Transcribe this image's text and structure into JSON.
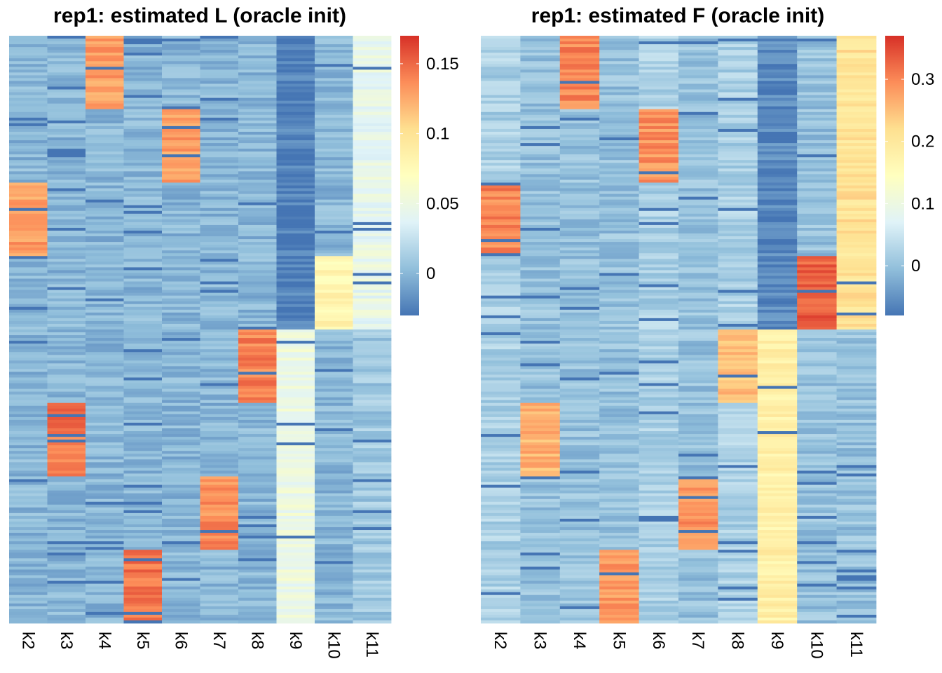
{
  "chart_data": [
    {
      "type": "heatmap",
      "title": "rep1: estimated L (oracle init)",
      "columns": [
        "k2",
        "k3",
        "k4",
        "k5",
        "k6",
        "k7",
        "k8",
        "k9",
        "k10",
        "k11"
      ],
      "row_blocks": 8,
      "block_means": [
        [
          0.0,
          0.0,
          0.13,
          0.0,
          0.0,
          0.0,
          0.0,
          -0.025,
          0.0,
          0.045
        ],
        [
          0.0,
          0.0,
          0.0,
          0.0,
          0.13,
          0.0,
          0.0,
          -0.025,
          0.0,
          0.045
        ],
        [
          0.13,
          0.0,
          0.0,
          0.0,
          0.0,
          0.0,
          0.0,
          -0.025,
          0.0,
          0.045
        ],
        [
          0.0,
          0.0,
          0.0,
          0.0,
          0.0,
          0.0,
          0.0,
          -0.025,
          0.08,
          0.045
        ],
        [
          0.0,
          0.0,
          0.0,
          0.0,
          0.0,
          0.0,
          0.14,
          0.05,
          0.0,
          0.01
        ],
        [
          0.0,
          0.145,
          0.0,
          0.0,
          0.0,
          0.0,
          0.0,
          0.05,
          0.0,
          0.01
        ],
        [
          0.0,
          0.0,
          0.0,
          0.0,
          0.0,
          0.135,
          0.0,
          0.05,
          0.0,
          0.01
        ],
        [
          0.0,
          0.0,
          0.0,
          0.145,
          0.0,
          0.0,
          0.0,
          0.05,
          0.0,
          0.01
        ]
      ],
      "color_range": [
        -0.03,
        0.17
      ],
      "colorbar_ticks": [
        0.15,
        0.1,
        0.05,
        0
      ],
      "colorbar_tick_labels": [
        "0.15",
        "0.1",
        "0.05",
        "0"
      ]
    },
    {
      "type": "heatmap",
      "title": "rep1: estimated F (oracle init)",
      "columns": [
        "k2",
        "k3",
        "k4",
        "k5",
        "k6",
        "k7",
        "k8",
        "k9",
        "k10",
        "k11"
      ],
      "row_blocks": 8,
      "block_means": [
        [
          0.02,
          0.0,
          0.3,
          0.0,
          0.02,
          0.0,
          0.02,
          -0.06,
          0.0,
          0.21
        ],
        [
          0.02,
          0.0,
          0.0,
          0.0,
          0.29,
          0.0,
          0.02,
          -0.06,
          0.0,
          0.21
        ],
        [
          0.3,
          0.0,
          0.0,
          0.0,
          0.02,
          0.0,
          0.02,
          -0.06,
          0.0,
          0.21
        ],
        [
          0.02,
          0.0,
          0.0,
          0.0,
          0.02,
          0.0,
          0.02,
          -0.06,
          0.33,
          0.21
        ],
        [
          0.02,
          0.0,
          0.0,
          0.0,
          0.02,
          0.0,
          0.25,
          0.18,
          0.0,
          0.0
        ],
        [
          0.02,
          0.26,
          0.0,
          0.0,
          0.02,
          0.0,
          0.02,
          0.18,
          0.0,
          0.0
        ],
        [
          0.02,
          0.0,
          0.0,
          0.0,
          0.02,
          0.29,
          0.02,
          0.18,
          0.0,
          0.0
        ],
        [
          0.02,
          0.0,
          0.0,
          0.28,
          0.02,
          0.0,
          0.02,
          0.18,
          0.0,
          0.0
        ]
      ],
      "color_range": [
        -0.08,
        0.37
      ],
      "colorbar_ticks": [
        0.3,
        0.2,
        0.1,
        0
      ],
      "colorbar_tick_labels": [
        "0.3",
        "0.2",
        "0.1",
        "0"
      ]
    }
  ],
  "colors": {
    "scale": [
      "#4575b4",
      "#91bfdb",
      "#e0f3f8",
      "#ffffbf",
      "#fee090",
      "#fc8d59",
      "#d73027"
    ]
  }
}
